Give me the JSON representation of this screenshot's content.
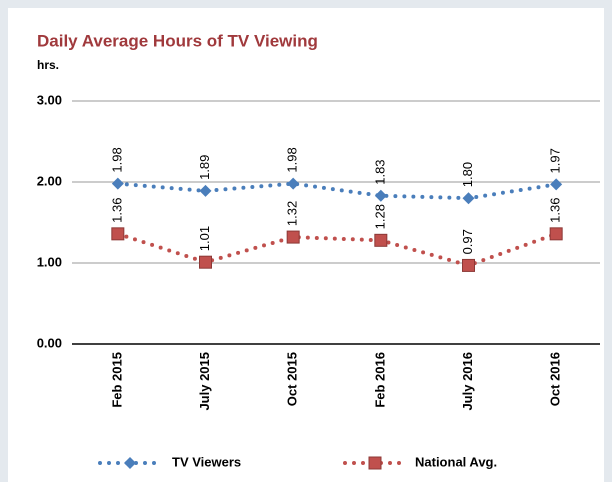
{
  "chart_data": {
    "type": "line",
    "title": "Daily Average Hours of TV Viewing",
    "y_label": "hrs.",
    "categories": [
      "Feb 2015",
      "July 2015",
      "Oct 2015",
      "Feb 2016",
      "July 2016",
      "Oct 2016"
    ],
    "series": [
      {
        "name": "TV Viewers",
        "color": "#4a7ebb",
        "marker": "diamond",
        "values": [
          1.98,
          1.89,
          1.98,
          1.83,
          1.8,
          1.97
        ],
        "value_labels": [
          "1.98",
          "1.89",
          "1.98",
          "1.83",
          "1.80",
          "1.97"
        ]
      },
      {
        "name": "National Avg.",
        "color": "#c0504d",
        "marker": "square",
        "values": [
          1.36,
          1.01,
          1.32,
          1.28,
          0.97,
          1.36
        ],
        "value_labels": [
          "1.36",
          "1.01",
          "1.32",
          "1.28",
          "0.97",
          "1.36"
        ]
      }
    ],
    "ylim": [
      0,
      3
    ],
    "yticks": [
      {
        "value": 0,
        "label": "0.00"
      },
      {
        "value": 1,
        "label": "1.00"
      },
      {
        "value": 2,
        "label": "2.00"
      },
      {
        "value": 3,
        "label": "3.00"
      }
    ],
    "grid": true,
    "legend": "bottom"
  }
}
